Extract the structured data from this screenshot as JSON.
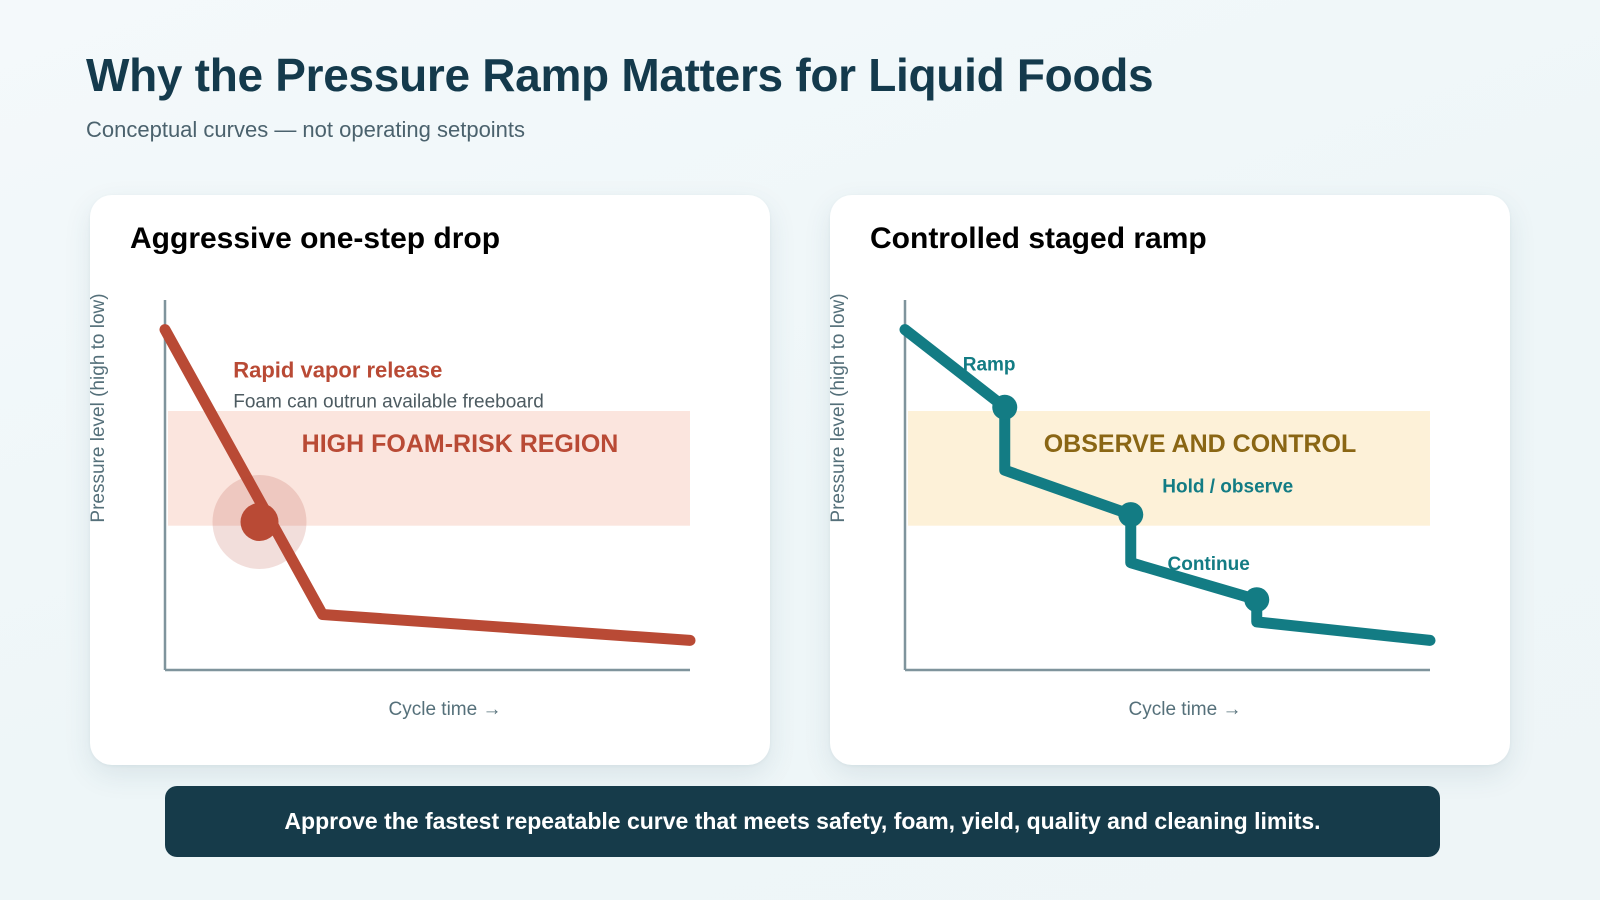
{
  "header": {
    "title": "Why the Pressure Ramp Matters for Liquid Foods",
    "subtitle": "Conceptual curves — not operating setpoints"
  },
  "colors": {
    "aggressive": "#b94a35",
    "controlled": "#137c84",
    "risk_band": "#fbe5de",
    "observe_band": "#fdf1d8",
    "observe_text": "#8a6614",
    "axis": "#7f949c",
    "banner_bg": "#163b4a"
  },
  "chart_data": [
    {
      "type": "line",
      "title": "Aggressive one-step drop",
      "xlabel": "Cycle time →",
      "ylabel": "Pressure level (high to low)",
      "xlim": [
        0,
        100
      ],
      "ylim": [
        0,
        100
      ],
      "series": [
        {
          "points": [
            [
              0,
              92
            ],
            [
              30,
              15
            ],
            [
              100,
              8
            ]
          ]
        }
      ],
      "band": {
        "y_from": 39,
        "y_to": 70,
        "label": "HIGH FOAM-RISK REGION"
      },
      "marker": {
        "x": 18,
        "y": 40
      },
      "annotations": [
        {
          "id": "headline",
          "text": "Rapid vapor release",
          "x": 13,
          "y": 79
        },
        {
          "id": "detail",
          "text": "Foam can outrun available freeboard",
          "x": 13,
          "y": 71
        }
      ]
    },
    {
      "type": "line",
      "title": "Controlled staged ramp",
      "xlabel": "Cycle time →",
      "ylabel": "Pressure level (high to low)",
      "xlim": [
        0,
        100
      ],
      "ylim": [
        0,
        100
      ],
      "series": [
        {
          "points": [
            [
              0,
              92
            ],
            [
              19,
              71
            ],
            [
              19,
              54
            ],
            [
              43,
              42
            ],
            [
              43,
              29
            ],
            [
              67,
              19
            ],
            [
              67,
              13
            ],
            [
              100,
              8
            ]
          ]
        }
      ],
      "band": {
        "y_from": 39,
        "y_to": 70,
        "label": "OBSERVE AND CONTROL"
      },
      "markers": [
        {
          "x": 19,
          "y": 71
        },
        {
          "x": 43,
          "y": 42
        },
        {
          "x": 67,
          "y": 19
        }
      ],
      "annotations": [
        {
          "id": "ramp",
          "text": "Ramp",
          "x": 11,
          "y": 81
        },
        {
          "id": "hold",
          "text": "Hold / observe",
          "x": 49,
          "y": 48
        },
        {
          "id": "continue",
          "text": "Continue",
          "x": 50,
          "y": 27
        }
      ]
    }
  ],
  "footer": {
    "message": "Approve the fastest repeatable curve that meets safety, foam, yield, quality and cleaning limits."
  }
}
